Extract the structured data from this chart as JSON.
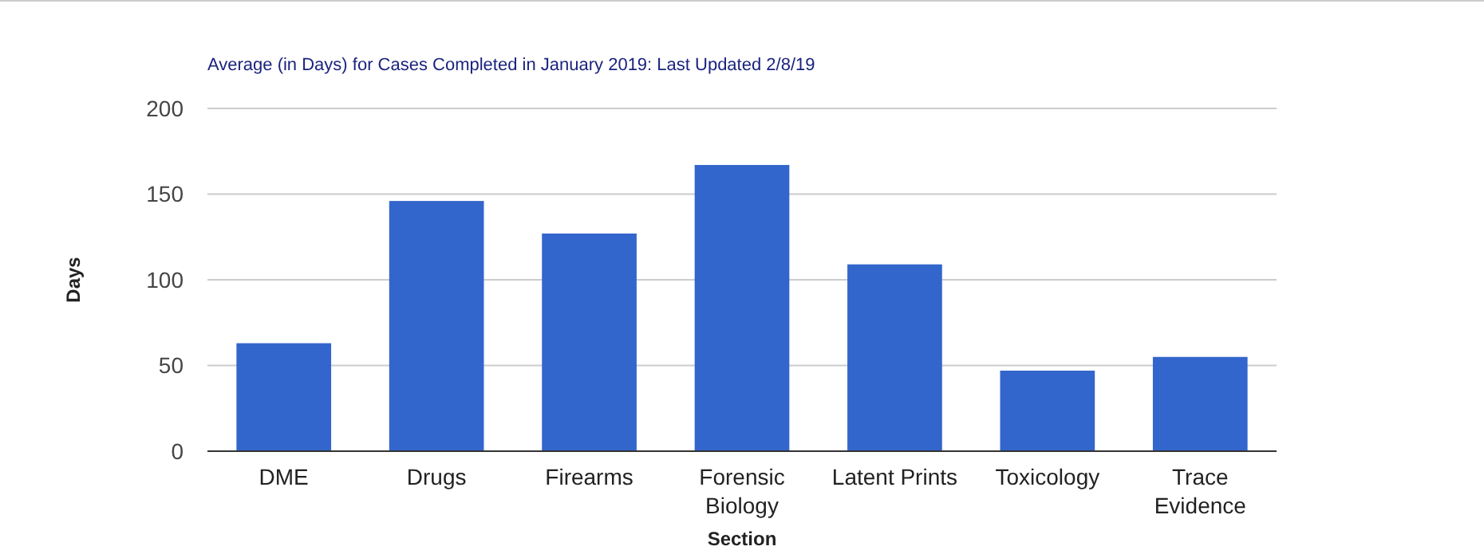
{
  "chart_data": {
    "type": "bar",
    "title": "Average (in Days) for Cases Completed in January 2019: Last Updated 2/8/19",
    "xlabel": "Section",
    "ylabel": "Days",
    "categories": [
      "DME",
      "Drugs",
      "Firearms",
      "Forensic Biology",
      "Latent Prints",
      "Toxicology",
      "Trace Evidence"
    ],
    "values": [
      63,
      146,
      127,
      167,
      109,
      47,
      55
    ],
    "color": "#3366cc",
    "ylim": [
      0,
      200
    ],
    "yticks": [
      0,
      50,
      100,
      150,
      200
    ],
    "grid": "y"
  }
}
